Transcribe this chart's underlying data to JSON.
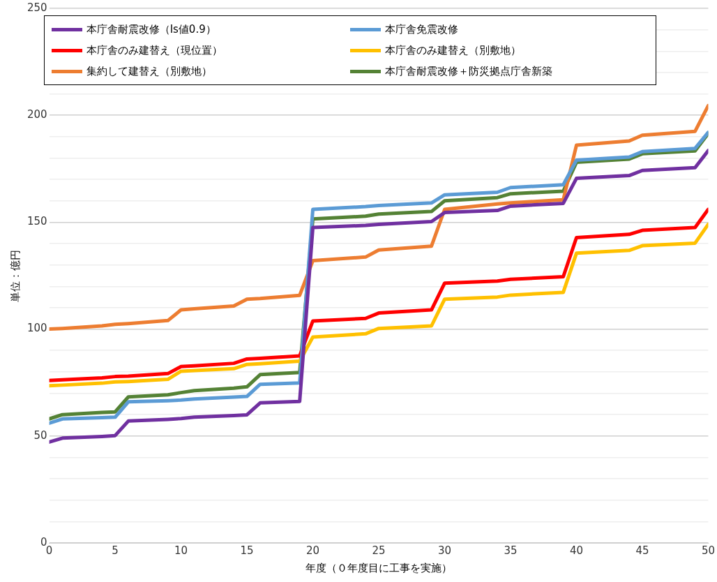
{
  "chart_data": {
    "type": "line",
    "xlabel": "年度（０年度目に工事を実施）",
    "ylabel": "単位：億円",
    "x": [
      0,
      1,
      4,
      5,
      6,
      9,
      10,
      11,
      14,
      15,
      16,
      19,
      20,
      24,
      25,
      29,
      30,
      34,
      35,
      39,
      40,
      44,
      45,
      49,
      50
    ],
    "xlim": [
      0,
      50
    ],
    "xticks": [
      0,
      5,
      10,
      15,
      20,
      25,
      30,
      35,
      40,
      45,
      50
    ],
    "ylim": [
      0,
      250
    ],
    "yticks": [
      0,
      {
        "value": 10,
        "label": null
      },
      {
        "value": 20,
        "label": null
      },
      {
        "value": 30,
        "label": null
      },
      {
        "value": 40,
        "label": null
      },
      50,
      {
        "value": 60,
        "label": null
      },
      {
        "value": 70,
        "label": null
      },
      {
        "value": 80,
        "label": null
      },
      {
        "value": 90,
        "label": null
      },
      100,
      {
        "value": 110,
        "label": null
      },
      {
        "value": 120,
        "label": null
      },
      {
        "value": 130,
        "label": null
      },
      {
        "value": 140,
        "label": null
      },
      150,
      {
        "value": 160,
        "label": null
      },
      {
        "value": 170,
        "label": null
      },
      {
        "value": 180,
        "label": null
      },
      {
        "value": 190,
        "label": null
      },
      200,
      {
        "value": 210,
        "label": null
      },
      {
        "value": 220,
        "label": null
      },
      {
        "value": 230,
        "label": null
      },
      {
        "value": 240,
        "label": null
      },
      250
    ],
    "grid": "y",
    "legend": "top",
    "marker": "none",
    "line_style": "solid",
    "series": [
      {
        "name": "本庁舎耐震改修（Is値0.9）",
        "color": "#7030a0",
        "values": [
          47.2,
          49,
          49.8,
          50.2,
          57,
          57.8,
          58.2,
          58.8,
          59.6,
          59.9,
          65.5,
          66.2,
          147.5,
          148.5,
          149,
          150.3,
          154.5,
          155.5,
          157.5,
          158.8,
          170.5,
          171.8,
          174.2,
          175.5,
          183.5
        ]
      },
      {
        "name": "本庁舎免震改修",
        "color": "#5b9bd5",
        "values": [
          56,
          58,
          58.6,
          58.8,
          66,
          66.5,
          66.8,
          67.3,
          68.2,
          68.5,
          74.2,
          74.8,
          156,
          157.3,
          157.8,
          159,
          162.8,
          164,
          166.2,
          167.5,
          179,
          180.5,
          183,
          184.5,
          192
        ]
      },
      {
        "name": "本庁舎のみ建替え（現位置）",
        "color": "#ff0000",
        "values": [
          76,
          76.3,
          77.2,
          77.8,
          78,
          79.2,
          82.5,
          82.8,
          84,
          86,
          86.3,
          87.5,
          103.8,
          105,
          107.5,
          109,
          121.5,
          122.5,
          123.3,
          124.5,
          142.8,
          144.3,
          146.2,
          147.5,
          156
        ]
      },
      {
        "name": "本庁舎のみ建替え（別敷地）",
        "color": "#ffc000",
        "values": [
          73.5,
          73.8,
          74.7,
          75.3,
          75.5,
          76.5,
          80.3,
          80.6,
          81.5,
          83.5,
          83.8,
          85,
          96.3,
          97.8,
          100.3,
          101.5,
          114,
          115,
          115.9,
          117.2,
          135.5,
          136.8,
          139,
          140.2,
          149
        ]
      },
      {
        "name": "集約して建替え（別敷地）",
        "color": "#ed7d31",
        "values": [
          100,
          100.3,
          101.5,
          102.2,
          102.6,
          104,
          109,
          109.5,
          110.8,
          114,
          114.3,
          115.8,
          132,
          133.7,
          137,
          138.8,
          156,
          158.5,
          159,
          160.5,
          186,
          188,
          190.7,
          192.5,
          204.5
        ]
      },
      {
        "name": "本庁舎耐震改修＋防災拠点庁舎新築",
        "color": "#548235",
        "values": [
          58,
          60,
          61,
          61.3,
          68.3,
          69.3,
          70.3,
          71.2,
          72.4,
          73,
          78.7,
          79.7,
          151.5,
          152.8,
          153.8,
          155,
          160,
          161.5,
          163.3,
          164.5,
          178,
          179.5,
          182,
          183.3,
          191.5
        ]
      }
    ]
  }
}
